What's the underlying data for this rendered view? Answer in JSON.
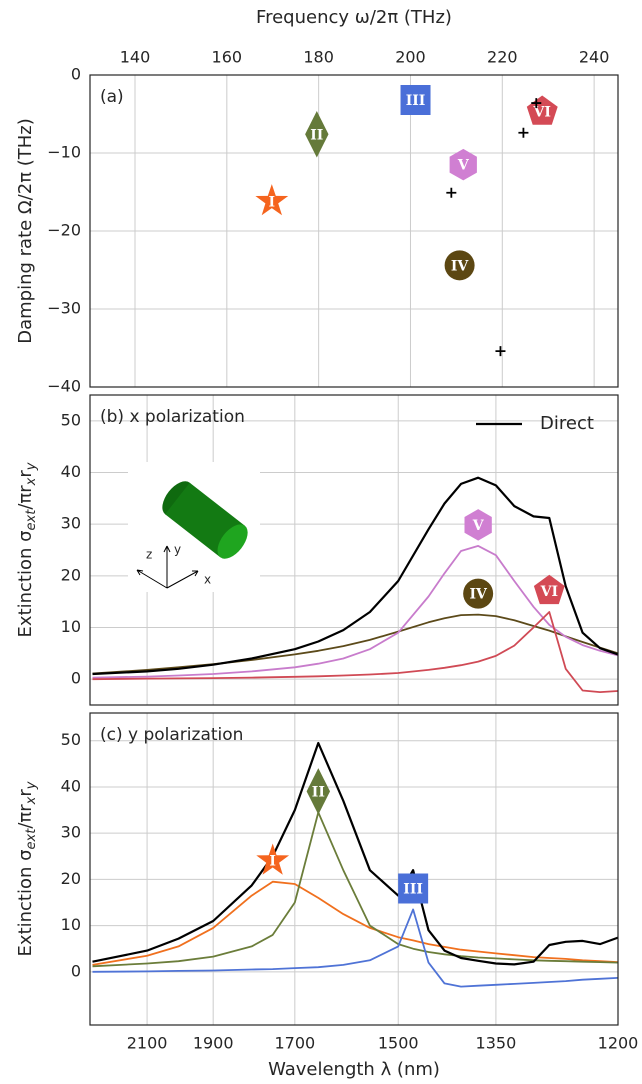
{
  "chart_data": [
    {
      "type": "scatter",
      "title": "(a)",
      "xlabel": "Frequency ω/2π (THz)",
      "ylabel": "Damping rate Ω/2π (THz)",
      "xaxis_position": "top",
      "xlim": [
        130.2,
        245.2
      ],
      "xticks": [
        140,
        160,
        180,
        200,
        220,
        240
      ],
      "ylim": [
        -40,
        0
      ],
      "yticks": [
        0,
        {
          "value": -10,
          "label": "−10"
        },
        {
          "value": -20,
          "label": "−20"
        },
        {
          "value": -30,
          "label": "−30"
        },
        {
          "value": -40,
          "label": "−40"
        }
      ],
      "grid": true,
      "points": [
        {
          "label": "I",
          "x": 169.8,
          "y": -16.2,
          "shape": "star",
          "color": "#f5641e"
        },
        {
          "label": "II",
          "x": 179.6,
          "y": -7.6,
          "shape": "diamond",
          "color": "#657a3a"
        },
        {
          "label": "III",
          "x": 201.1,
          "y": -3.2,
          "shape": "square",
          "color": "#4a6fd8"
        },
        {
          "label": "IV",
          "x": 210.7,
          "y": -24.4,
          "shape": "circle",
          "color": "#5c4712"
        },
        {
          "label": "V",
          "x": 211.5,
          "y": -11.5,
          "shape": "hexagon",
          "color": "#d07fd2"
        },
        {
          "label": "VI",
          "x": 228.7,
          "y": -4.7,
          "shape": "pentagon",
          "color": "#d44a55"
        }
      ],
      "crosses": {
        "x": [
          208.9,
          224.6,
          227.4,
          219.6
        ],
        "y": [
          -15.1,
          -7.4,
          -3.6,
          -35.4
        ],
        "color": "#000000"
      }
    },
    {
      "type": "line",
      "title": "(b) x polarization",
      "ylabel": [
        "Extinction σ",
        "ext",
        "/πr",
        "x",
        "r",
        "y"
      ],
      "xscale": "reciprocal",
      "xlim": [
        2310,
        1200
      ],
      "xticks": [
        2100,
        1900,
        1700,
        1500,
        1350,
        1200
      ],
      "show_xtick_labels": false,
      "ylim": [
        -5,
        55
      ],
      "yticks": [
        0,
        10,
        20,
        30,
        40,
        50
      ],
      "grid": true,
      "legend": "upper right",
      "inset_labels": [
        "z",
        "y",
        "x"
      ],
      "x": [
        2300,
        2100,
        2000,
        1900,
        1800,
        1700,
        1650,
        1600,
        1550,
        1500,
        1450,
        1425,
        1400,
        1375,
        1350,
        1325,
        1300,
        1280,
        1260,
        1240,
        1220,
        1200
      ],
      "series": [
        {
          "badge": "IV",
          "color": "#5c4a1a",
          "values": [
            1.1,
            1.8,
            2.3,
            2.9,
            3.7,
            4.8,
            5.5,
            6.4,
            7.6,
            9.2,
            11.0,
            11.8,
            12.4,
            12.5,
            12.2,
            11.4,
            10.3,
            9.4,
            8.3,
            7.2,
            6.1,
            5.0
          ]
        },
        {
          "badge": "V",
          "color": "#c87ccc",
          "values": [
            0.3,
            0.5,
            0.7,
            1.0,
            1.5,
            2.3,
            3,
            4,
            5.8,
            9,
            16,
            20.5,
            24.8,
            25.8,
            24,
            19,
            14,
            10.5,
            8.2,
            6.6,
            5.5,
            4.6
          ]
        },
        {
          "badge": "VI",
          "color": "#d04a55",
          "values": [
            0,
            0.1,
            0.15,
            0.2,
            0.3,
            0.45,
            0.55,
            0.7,
            0.9,
            1.2,
            1.8,
            2.2,
            2.7,
            3.4,
            4.5,
            6.5,
            10,
            13,
            2,
            -2.2,
            -2.5,
            -2.3
          ]
        },
        {
          "name": "Direct",
          "color": "#000000",
          "values": [
            1.0,
            1.5,
            2.0,
            2.8,
            4.0,
            5.8,
            7.3,
            9.5,
            13,
            19,
            29,
            34,
            37.8,
            39,
            37.5,
            33.5,
            31.5,
            31.2,
            18,
            9,
            6,
            4.8
          ]
        }
      ]
    },
    {
      "type": "line",
      "title": "(c) y polarization",
      "ylabel": [
        "Extinction σ",
        "ext",
        "/πr",
        "x",
        "r",
        "y"
      ],
      "xlabel": "Wavelength λ (nm)",
      "xscale": "reciprocal",
      "xlim": [
        2310,
        1200
      ],
      "xticks": [
        2100,
        1900,
        1700,
        1500,
        1350,
        1200
      ],
      "ylim": [
        -11.5,
        56
      ],
      "yticks": [
        0,
        10,
        20,
        30,
        40,
        50
      ],
      "grid": true,
      "x": [
        2300,
        2100,
        2000,
        1900,
        1800,
        1750,
        1700,
        1650,
        1600,
        1550,
        1500,
        1475,
        1450,
        1425,
        1400,
        1375,
        1350,
        1325,
        1300,
        1280,
        1260,
        1240,
        1220,
        1200
      ],
      "series": [
        {
          "badge": "I",
          "color": "#f0701e",
          "values": [
            1.5,
            3.5,
            5.5,
            9.5,
            16.5,
            19.5,
            19,
            16,
            12.5,
            9.5,
            7.5,
            6.8,
            6,
            5.4,
            4.8,
            4.4,
            4,
            3.6,
            3.2,
            3,
            2.8,
            2.5,
            2.3,
            2.1
          ]
        },
        {
          "badge": "II",
          "color": "#6b7d3a",
          "values": [
            1.2,
            1.8,
            2.3,
            3.3,
            5.5,
            8,
            15,
            34.5,
            22,
            10,
            6,
            5,
            4.3,
            3.8,
            3.4,
            3.1,
            2.9,
            2.7,
            2.5,
            2.4,
            2.3,
            2.2,
            2.1,
            2
          ]
        },
        {
          "badge": "III",
          "color": "#4f73d6",
          "values": [
            0,
            0.1,
            0.2,
            0.3,
            0.5,
            0.6,
            0.8,
            1,
            1.5,
            2.5,
            5.5,
            13.5,
            2,
            -2.5,
            -3.2,
            -3,
            -2.8,
            -2.6,
            -2.4,
            -2.2,
            -2,
            -1.7,
            -1.5,
            -1.3
          ]
        },
        {
          "color": "#000000",
          "values": [
            2.2,
            4.6,
            7.2,
            11,
            18.7,
            25,
            35,
            49.5,
            37,
            22,
            16.5,
            22,
            9,
            4.6,
            3,
            2.4,
            1.8,
            1.6,
            2.2,
            5.8,
            6.5,
            6.7,
            6,
            7.4
          ]
        }
      ]
    }
  ]
}
